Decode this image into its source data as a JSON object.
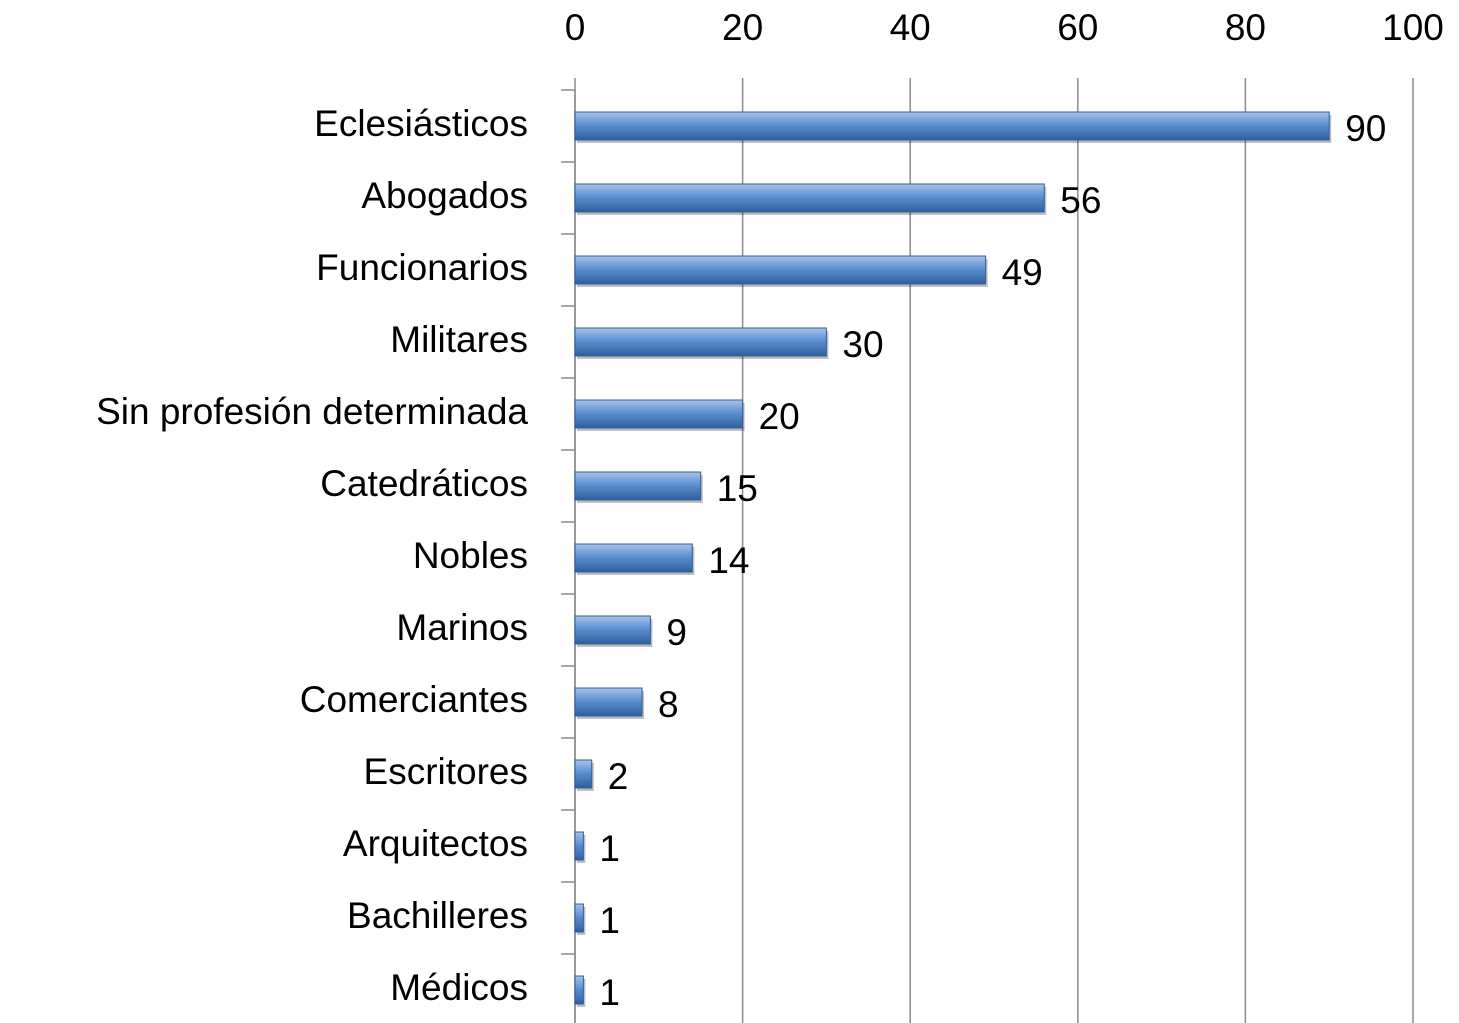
{
  "chart_data": {
    "type": "bar",
    "orientation": "horizontal",
    "categories": [
      "Eclesiásticos",
      "Abogados",
      "Funcionarios",
      "Militares",
      "Sin profesión determinada",
      "Catedráticos",
      "Nobles",
      "Marinos",
      "Comerciantes",
      "Escritores",
      "Arquitectos",
      "Bachilleres",
      "Médicos"
    ],
    "values": [
      90,
      56,
      49,
      30,
      20,
      15,
      14,
      9,
      8,
      2,
      1,
      1,
      1
    ],
    "color": "#4f81bd",
    "xlim": [
      0,
      100
    ],
    "xticks": [
      0,
      20,
      40,
      60,
      80,
      100
    ],
    "grid": true,
    "data_labels": true
  }
}
